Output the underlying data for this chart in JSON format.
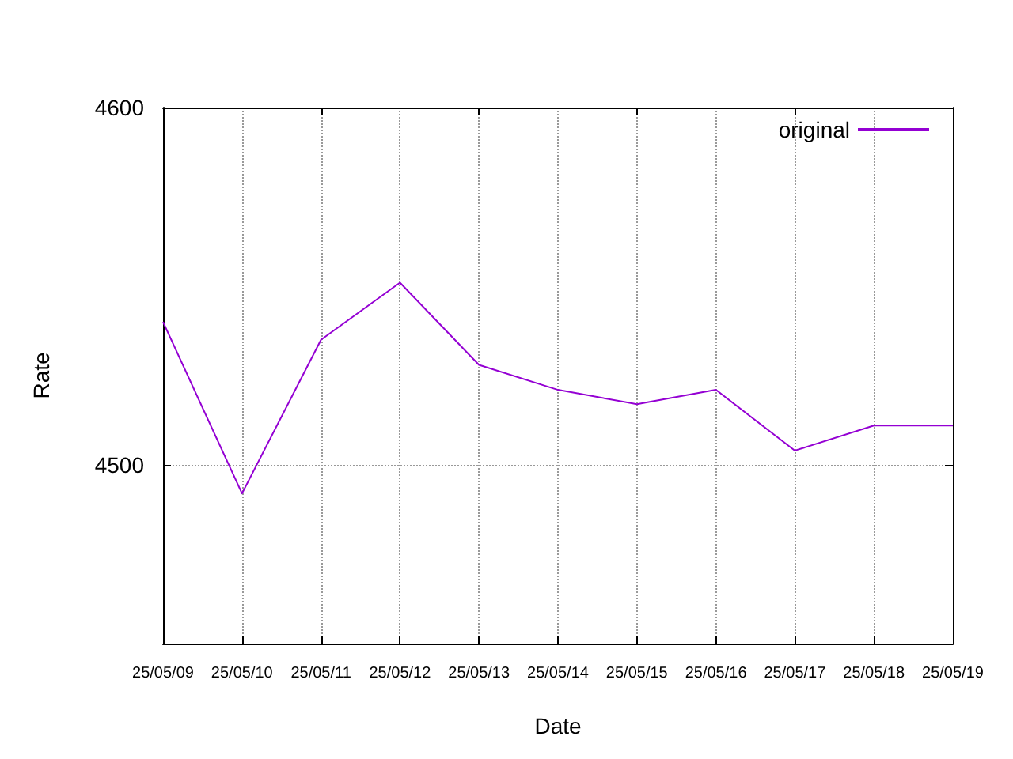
{
  "chart_data": {
    "type": "line",
    "xlabel": "Date",
    "ylabel": "Rate",
    "categories": [
      "25/05/09",
      "25/05/10",
      "25/05/11",
      "25/05/12",
      "25/05/13",
      "25/05/14",
      "25/05/15",
      "25/05/16",
      "25/05/17",
      "25/05/18",
      "25/05/19"
    ],
    "series": [
      {
        "name": "original",
        "color": "#9400d3",
        "values": [
          4540,
          4492,
          4535,
          4551,
          4528,
          4521,
          4517,
          4521,
          4504,
          4511,
          4511
        ]
      }
    ],
    "ylim": [
      4450,
      4600
    ],
    "yticks": [
      4500,
      4600
    ],
    "grid": true,
    "legend": "top right",
    "marker": "none",
    "line_style": "solid"
  }
}
